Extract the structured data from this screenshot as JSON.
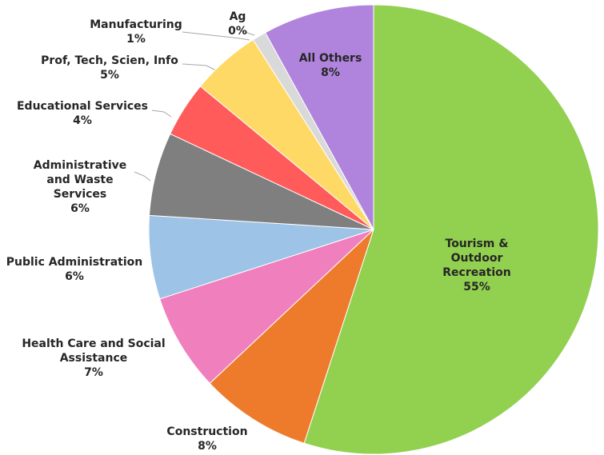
{
  "chart_data": {
    "type": "pie",
    "categories": [
      "Tourism & Outdoor Recreation",
      "Construction",
      "Health Care and Social Assistance",
      "Public Administration",
      "Administrative and Waste Services",
      "Educational Services",
      "Prof, Tech, Scien, Info",
      "Manufacturing",
      "Ag",
      "All Others"
    ],
    "values": [
      55,
      8,
      7,
      6,
      6,
      4,
      5,
      1,
      0,
      8
    ],
    "value_labels": [
      "55%",
      "8%",
      "7%",
      "6%",
      "6%",
      "4%",
      "5%",
      "1%",
      "0%",
      "8%"
    ],
    "colors": [
      "#92d050",
      "#ee7b2c",
      "#f07fbd",
      "#9dc3e6",
      "#7f7f7f",
      "#ff5b5b",
      "#ffd966",
      "#d9d9d9",
      "#595959",
      "#b084dc"
    ]
  }
}
